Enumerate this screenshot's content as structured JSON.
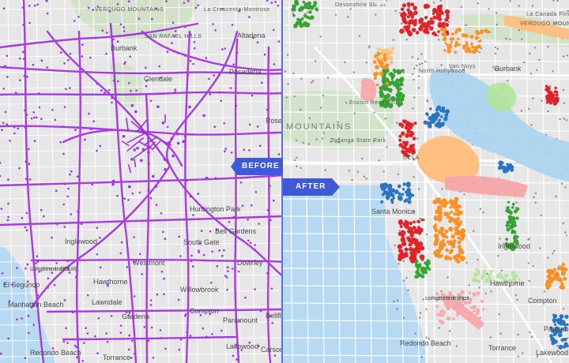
{
  "labels": {
    "before": "BEFORE",
    "after": "AFTER"
  },
  "colors": {
    "route_before": "#9b1fe0",
    "route_before_dot": "#a030e8",
    "badge": "#3f59d8",
    "water": "#b7daf2",
    "land": "#e6e6e6",
    "park": "#cfe0c4",
    "highway": "#ffffff",
    "divider": "#5b6ee8",
    "territory_green": "#2ea02c",
    "territory_red": "#e0191f",
    "territory_orange": "#ff8c1a",
    "territory_blue": "#1f6fc1",
    "territory_pink": "#f7a5a8",
    "territory_lightblue": "#a8d4ee",
    "territory_peach": "#ffbd7a",
    "territory_lightgreen": "#b5e39a",
    "unassigned_dot": "#6a6a6a"
  },
  "left_map": {
    "places": [
      {
        "name": "VERDUGO MOUNTAINS",
        "cls": "sm"
      },
      {
        "name": "La Crescenta-Montrose",
        "cls": "sm"
      },
      {
        "name": "SAN RAFAEL HILLS",
        "cls": "sm"
      },
      {
        "name": "Altadena",
        "cls": ""
      },
      {
        "name": "Burbank",
        "cls": ""
      },
      {
        "name": "Glendale",
        "cls": ""
      },
      {
        "name": "Pasadena",
        "cls": ""
      },
      {
        "name": "Huntington Park",
        "cls": ""
      },
      {
        "name": "Bell Gardens",
        "cls": ""
      },
      {
        "name": "South Gate",
        "cls": ""
      },
      {
        "name": "Inglewood",
        "cls": ""
      },
      {
        "name": "Westmont",
        "cls": ""
      },
      {
        "name": "Downey",
        "cls": ""
      },
      {
        "name": "Hawthorne",
        "cls": ""
      },
      {
        "name": "Lawndale",
        "cls": ""
      },
      {
        "name": "Gardena",
        "cls": ""
      },
      {
        "name": "Willowbrook",
        "cls": ""
      },
      {
        "name": "Compton",
        "cls": ""
      },
      {
        "name": "Paramount",
        "cls": ""
      },
      {
        "name": "Bellflower",
        "cls": ""
      },
      {
        "name": "El Segundo",
        "cls": ""
      },
      {
        "name": "Manhattan Beach",
        "cls": ""
      },
      {
        "name": "Redondo Beach",
        "cls": ""
      },
      {
        "name": "Torrance",
        "cls": ""
      },
      {
        "name": "Lakewood",
        "cls": ""
      },
      {
        "name": "Rosemead",
        "cls": ""
      },
      {
        "name": "Los Angeles International Airport (LAX)",
        "cls": "sm"
      },
      {
        "name": "Carson",
        "cls": ""
      }
    ]
  },
  "right_map": {
    "places": [
      {
        "name": "Devonshire St",
        "cls": "sm"
      },
      {
        "name": "VERDUGO MOUNTAINS",
        "cls": "sm"
      },
      {
        "name": "La Canada Flintridge",
        "cls": "sm"
      },
      {
        "name": "Burbank",
        "cls": ""
      },
      {
        "name": "Encino Reservoir",
        "cls": "sm"
      },
      {
        "name": "Topanga State Park",
        "cls": "sm"
      },
      {
        "name": "UCLA",
        "cls": "sm"
      },
      {
        "name": "Santa Monica",
        "cls": ""
      },
      {
        "name": "Inglewood",
        "cls": ""
      },
      {
        "name": "Hawthorne",
        "cls": ""
      },
      {
        "name": "Redondo Beach",
        "cls": ""
      },
      {
        "name": "Torrance",
        "cls": ""
      },
      {
        "name": "Compton",
        "cls": ""
      },
      {
        "name": "Los Angeles International Airport",
        "cls": "sm"
      },
      {
        "name": "MOUNTAINS",
        "cls": "big"
      },
      {
        "name": "North Hollywood",
        "cls": "sm"
      },
      {
        "name": "Van Nuys",
        "cls": "sm"
      },
      {
        "name": "Paramount",
        "cls": ""
      },
      {
        "name": "Lakewood",
        "cls": ""
      }
    ]
  }
}
